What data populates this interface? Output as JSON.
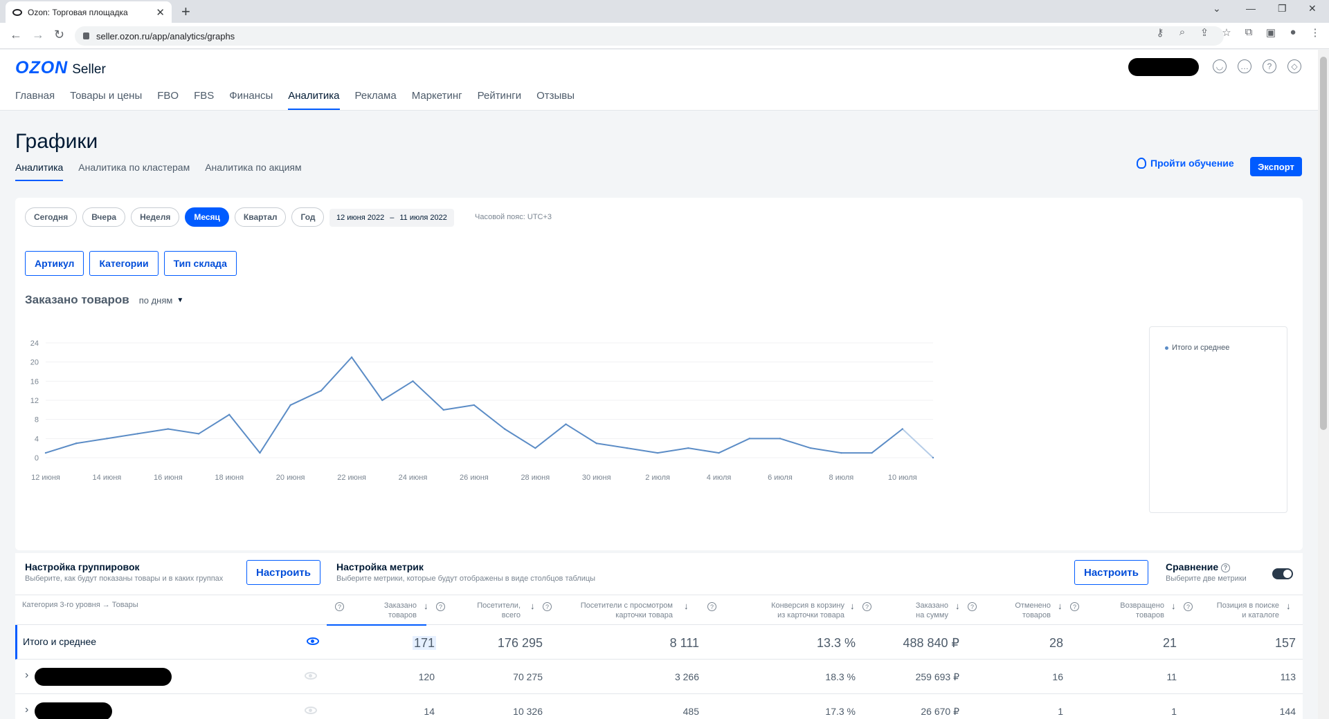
{
  "browser": {
    "tab_title": "Ozon: Торговая площадка",
    "url": "seller.ozon.ru/app/analytics/graphs"
  },
  "header": {
    "logo": "OZON",
    "logo_sub": "Seller",
    "nav": [
      "Главная",
      "Товары и цены",
      "FBO",
      "FBS",
      "Финансы",
      "Аналитика",
      "Реклама",
      "Маркетинг",
      "Рейтинги",
      "Отзывы"
    ],
    "active_nav": "Аналитика"
  },
  "page": {
    "title": "Графики",
    "subtabs": [
      "Аналитика",
      "Аналитика по кластерам",
      "Аналитика по акциям"
    ],
    "learn_label": "Пройти обучение",
    "export_label": "Экспорт"
  },
  "filters": {
    "periods": [
      "Сегодня",
      "Вчера",
      "Неделя",
      "Месяц",
      "Квартал",
      "Год"
    ],
    "active_period": "Месяц",
    "date_from": "12 июня 2022",
    "date_sep": "–",
    "date_to": "11 июля 2022",
    "timezone": "Часовой пояс: UTC+3",
    "group_buttons": [
      "Артикул",
      "Категории",
      "Тип склада"
    ]
  },
  "chart": {
    "title": "Заказано товаров",
    "grouping": "по дням"
  },
  "chart_data": {
    "type": "line",
    "title": "Заказано товаров",
    "x": [
      "12 июня",
      "13 июня",
      "14 июня",
      "15 июня",
      "16 июня",
      "17 июня",
      "18 июня",
      "19 июня",
      "20 июня",
      "21 июня",
      "22 июня",
      "23 июня",
      "24 июня",
      "25 июня",
      "26 июня",
      "27 июня",
      "28 июня",
      "29 июня",
      "30 июня",
      "1 июля",
      "2 июля",
      "3 июля",
      "4 июля",
      "5 июля",
      "6 июля",
      "7 июля",
      "8 июля",
      "9 июля",
      "10 июля",
      "11 июля"
    ],
    "x_ticks": [
      "12 июня",
      "14 июня",
      "16 июня",
      "18 июня",
      "20 июня",
      "22 июня",
      "24 июня",
      "26 июня",
      "28 июня",
      "30 июня",
      "2 июля",
      "4 июля",
      "6 июля",
      "8 июля",
      "10 июля"
    ],
    "y_ticks": [
      0,
      4,
      8,
      12,
      16,
      20,
      24
    ],
    "ylim": [
      0,
      24
    ],
    "series": [
      {
        "name": "Итого и среднее",
        "color": "#5b8cc6",
        "values": [
          1,
          3,
          4,
          5,
          6,
          5,
          9,
          1,
          11,
          14,
          21,
          12,
          16,
          10,
          11,
          6,
          2,
          7,
          3,
          2,
          1,
          2,
          1,
          4,
          4,
          2,
          1,
          1,
          6,
          0
        ]
      }
    ],
    "legend": "right",
    "grid": "horizontal"
  },
  "table": {
    "grouping_title": "Настройка группировок",
    "grouping_sub": "Выберите, как будут показаны товары и в каких группах",
    "grouping_button": "Настроить",
    "metrics_title": "Настройка метрик",
    "metrics_sub": "Выберите метрики, которые будут отображены в виде столбцов таблицы",
    "metrics_button": "Настроить",
    "compare_title": "Сравнение",
    "compare_sub": "Выберите две метрики",
    "category_header": "Категория 3-го уровня → Товары",
    "columns": [
      {
        "l1": "Заказано",
        "l2": "товаров"
      },
      {
        "l1": "Посетители,",
        "l2": "всего"
      },
      {
        "l1": "Посетители с просмотром",
        "l2": "карточки товара"
      },
      {
        "l1": "Конверсия в корзину",
        "l2": "из карточки товара"
      },
      {
        "l1": "Заказано",
        "l2": "на сумму"
      },
      {
        "l1": "Отменено",
        "l2": "товаров"
      },
      {
        "l1": "Возвращено",
        "l2": "товаров"
      },
      {
        "l1": "Позиция в поиске",
        "l2": "и каталоге"
      }
    ],
    "total_label": "Итого и среднее",
    "total": [
      "171",
      "176 295",
      "8 111",
      "13.3 %",
      "488 840 ₽",
      "28",
      "21",
      "157"
    ],
    "rows": [
      [
        "120",
        "70 275",
        "3 266",
        "18.3 %",
        "259 693 ₽",
        "16",
        "11",
        "113"
      ],
      [
        "14",
        "10 326",
        "485",
        "17.3 %",
        "26 670 ₽",
        "1",
        "1",
        "144"
      ]
    ]
  }
}
